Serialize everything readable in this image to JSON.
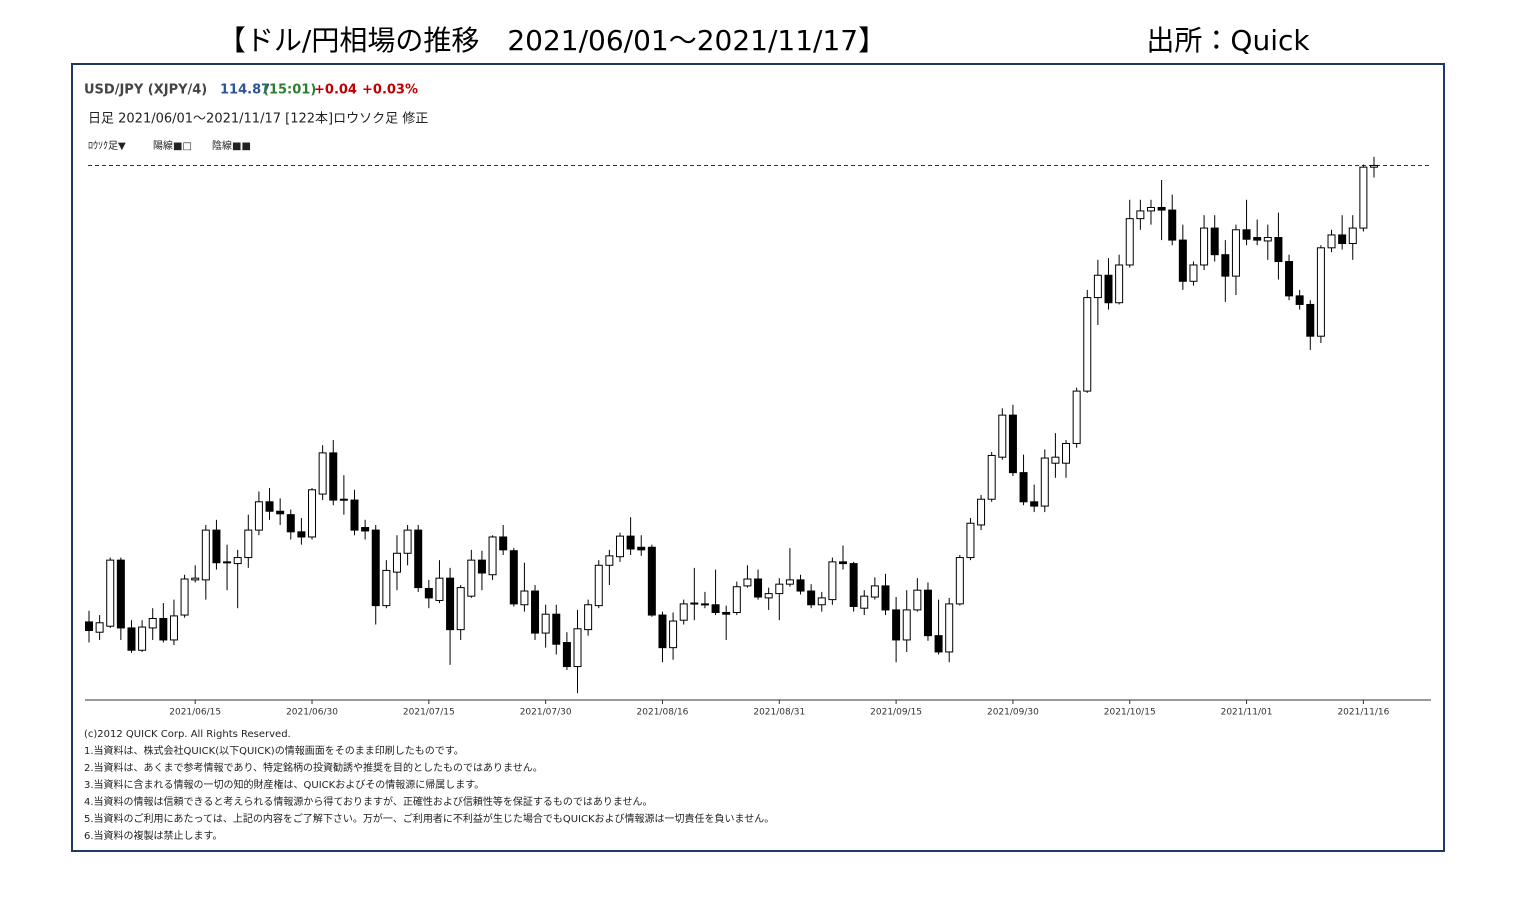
{
  "title": "【ドル/円相場の推移　2021/06/01～2021/11/17】",
  "source": "出所：Quick",
  "header": {
    "symbol": "USD/JPY (XJPY/4)",
    "last": 114.87,
    "time": "(15:01)",
    "change": "+0.04",
    "change_pct": "+0.03%",
    "period": "日足  2021/06/01～2021/11/17 [122本]ロウソク足 修正",
    "controls": [
      "ﾛｳｿｸ足▼",
      "陽線■□",
      "陰線■■"
    ]
  },
  "chart_data": {
    "type": "candlestick",
    "categories": [
      null,
      null,
      null,
      null,
      null,
      null,
      null,
      null,
      null,
      null,
      "2021/06/15",
      null,
      null,
      null,
      null,
      null,
      null,
      null,
      null,
      null,
      null,
      "2021/06/30",
      null,
      null,
      null,
      null,
      null,
      null,
      null,
      null,
      null,
      null,
      "2021/07/15",
      null,
      null,
      null,
      null,
      null,
      null,
      null,
      null,
      null,
      null,
      "2021/07/30",
      null,
      null,
      null,
      null,
      null,
      null,
      null,
      null,
      null,
      null,
      "2021/08/16",
      null,
      null,
      null,
      null,
      null,
      null,
      null,
      null,
      null,
      null,
      "2021/08/31",
      null,
      null,
      null,
      null,
      null,
      null,
      null,
      null,
      null,
      null,
      "2021/09/15",
      null,
      null,
      null,
      null,
      null,
      null,
      null,
      null,
      null,
      null,
      "2021/09/30",
      null,
      null,
      null,
      null,
      null,
      null,
      null,
      null,
      null,
      null,
      "2021/10/15",
      null,
      null,
      null,
      null,
      null,
      null,
      null,
      null,
      null,
      null,
      "2021/11/01",
      null,
      null,
      null,
      null,
      null,
      null,
      null,
      null,
      null,
      null,
      "2021/11/16",
      null
    ],
    "open": [
      109.55,
      109.43,
      109.5,
      110.27,
      109.48,
      109.22,
      109.48,
      109.59,
      109.34,
      109.63,
      110.04,
      110.04,
      110.62,
      110.24,
      110.23,
      110.3,
      110.62,
      110.95,
      110.84,
      110.8,
      110.6,
      110.54,
      111.04,
      111.52,
      110.97,
      110.97,
      110.65,
      110.62,
      109.74,
      110.13,
      110.35,
      110.62,
      109.94,
      109.8,
      110.06,
      109.46,
      109.85,
      110.27,
      110.1,
      110.54,
      110.38,
      109.75,
      109.91,
      109.42,
      109.64,
      109.31,
      109.03,
      109.46,
      109.74,
      110.21,
      110.31,
      110.55,
      110.42,
      110.42,
      109.63,
      109.25,
      109.57,
      109.76,
      109.75,
      109.75,
      109.66,
      109.66,
      109.97,
      110.05,
      109.83,
      109.88,
      109.99,
      110.04,
      109.91,
      109.75,
      109.81,
      110.25,
      110.23,
      109.71,
      109.84,
      109.97,
      109.69,
      109.34,
      109.69,
      109.92,
      109.39,
      109.2,
      109.76,
      110.3,
      110.68,
      110.98,
      111.47,
      111.96,
      111.29,
      110.95,
      110.9,
      111.4,
      111.4,
      111.63,
      112.24,
      113.33,
      113.59,
      113.27,
      113.71,
      114.25,
      114.34,
      114.38,
      114.35,
      114.0,
      113.52,
      113.71,
      114.14,
      113.83,
      113.58,
      114.12,
      114.03,
      113.99,
      114.03,
      113.75,
      113.35,
      113.25,
      112.88,
      113.91,
      114.06,
      113.96,
      114.14,
      114.85
    ],
    "high": [
      109.68,
      109.63,
      110.3,
      110.3,
      109.57,
      109.57,
      109.71,
      109.77,
      109.81,
      110.1,
      110.21,
      110.68,
      110.74,
      110.45,
      110.39,
      110.8,
      111.07,
      111.11,
      110.99,
      110.86,
      110.76,
      111.11,
      111.61,
      111.67,
      111.26,
      111.09,
      110.74,
      110.68,
      110.27,
      110.56,
      110.68,
      110.68,
      110.04,
      110.27,
      110.18,
      109.98,
      110.39,
      110.38,
      110.56,
      110.68,
      110.41,
      110.24,
      109.98,
      109.75,
      109.75,
      109.43,
      109.69,
      109.81,
      110.27,
      110.39,
      110.59,
      110.77,
      110.56,
      110.45,
      109.67,
      109.66,
      109.81,
      110.18,
      109.9,
      110.16,
      109.74,
      110.02,
      110.21,
      110.16,
      109.95,
      110.06,
      110.41,
      110.1,
      109.99,
      109.9,
      110.3,
      110.44,
      110.25,
      109.92,
      110.07,
      110.11,
      109.84,
      109.92,
      110.06,
      110.01,
      109.81,
      109.83,
      110.33,
      110.76,
      111.03,
      111.53,
      112.04,
      112.08,
      111.5,
      111.15,
      111.56,
      111.75,
      111.67,
      112.28,
      113.42,
      113.77,
      113.79,
      113.83,
      114.47,
      114.47,
      114.47,
      114.7,
      114.53,
      114.18,
      113.75,
      114.29,
      114.29,
      114.0,
      114.18,
      114.47,
      114.24,
      114.18,
      114.32,
      113.83,
      113.42,
      113.3,
      113.94,
      114.12,
      114.29,
      114.29,
      114.88,
      114.97
    ],
    "low": [
      109.31,
      109.34,
      109.48,
      109.34,
      109.19,
      109.2,
      109.34,
      109.31,
      109.28,
      109.6,
      110.01,
      109.81,
      110.16,
      109.92,
      109.71,
      110.18,
      110.56,
      110.74,
      110.68,
      110.51,
      110.45,
      110.51,
      110.97,
      110.91,
      110.8,
      110.56,
      110.51,
      109.52,
      109.71,
      109.92,
      110.21,
      109.9,
      109.71,
      109.77,
      109.05,
      109.34,
      109.83,
      109.92,
      110.04,
      110.33,
      109.73,
      109.67,
      109.34,
      109.25,
      109.17,
      108.99,
      108.72,
      109.39,
      109.71,
      109.98,
      110.25,
      110.33,
      110.32,
      109.61,
      109.08,
      109.11,
      109.52,
      109.57,
      109.71,
      109.63,
      109.34,
      109.63,
      109.95,
      109.81,
      109.69,
      109.57,
      109.96,
      109.87,
      109.71,
      109.67,
      109.75,
      110.16,
      109.67,
      109.63,
      109.81,
      109.63,
      109.08,
      109.2,
      109.67,
      109.33,
      109.17,
      109.08,
      109.74,
      110.27,
      110.62,
      110.95,
      111.44,
      111.25,
      110.91,
      110.83,
      110.83,
      111.23,
      111.23,
      111.58,
      112.22,
      113.01,
      113.19,
      113.25,
      113.68,
      114.12,
      114.18,
      114.0,
      113.94,
      113.42,
      113.47,
      113.65,
      113.75,
      113.28,
      113.36,
      113.94,
      113.94,
      113.77,
      113.54,
      113.3,
      113.19,
      112.72,
      112.8,
      113.86,
      113.89,
      113.77,
      114.1,
      114.73
    ],
    "close": [
      109.45,
      109.54,
      110.27,
      109.48,
      109.22,
      109.49,
      109.59,
      109.34,
      109.62,
      110.05,
      110.06,
      110.62,
      110.24,
      110.25,
      110.3,
      110.62,
      110.95,
      110.84,
      110.81,
      110.6,
      110.54,
      111.09,
      111.52,
      110.97,
      110.98,
      110.62,
      110.61,
      109.74,
      110.15,
      110.35,
      110.62,
      109.95,
      109.83,
      110.06,
      109.46,
      109.95,
      110.27,
      110.12,
      110.54,
      110.39,
      109.76,
      109.91,
      109.42,
      109.64,
      109.29,
      109.03,
      109.47,
      109.75,
      110.21,
      110.32,
      110.55,
      110.4,
      110.39,
      109.63,
      109.25,
      109.56,
      109.76,
      109.77,
      109.76,
      109.66,
      109.64,
      109.96,
      110.05,
      109.84,
      109.88,
      109.99,
      110.04,
      109.91,
      109.75,
      109.83,
      110.25,
      110.23,
      109.73,
      109.85,
      109.97,
      109.69,
      109.34,
      109.69,
      109.92,
      109.39,
      109.2,
      109.76,
      110.3,
      110.7,
      110.98,
      111.49,
      111.96,
      111.29,
      110.95,
      110.9,
      111.46,
      111.47,
      111.63,
      112.24,
      113.33,
      113.59,
      113.27,
      113.71,
      114.25,
      114.34,
      114.38,
      114.35,
      114.0,
      113.52,
      113.71,
      114.14,
      113.83,
      113.58,
      114.12,
      114.01,
      114.0,
      114.03,
      113.75,
      113.35,
      113.25,
      112.88,
      113.91,
      114.06,
      113.96,
      114.14,
      114.85,
      114.87
    ],
    "ylim": [
      108.64,
      115.05
    ],
    "up_color": "#ffffff",
    "down_color": "#000000",
    "line_color": "#000000"
  },
  "footer": [
    "(c)2012 QUICK Corp. All Rights Reserved.",
    "1.当資料は、株式会社QUICK(以下QUICK)の情報画面をそのまま印刷したものです。",
    "2.当資料は、あくまで参考情報であり、特定銘柄の投資勧誘や推奨を目的としたものではありません。",
    "3.当資料に含まれる情報の一切の知的財産権は、QUICKおよびその情報源に帰属します。",
    "4.当資料の情報は信頼できると考えられる情報源から得ておりますが、正確性および信頼性等を保証するものではありません。",
    "5.当資料のご利用にあたっては、上記の内容をご了解下さい。万が一、ご利用者に不利益が生じた場合でもQUICKおよび情報源は一切責任を負いません。",
    "6.当資料の複製は禁止します。"
  ]
}
